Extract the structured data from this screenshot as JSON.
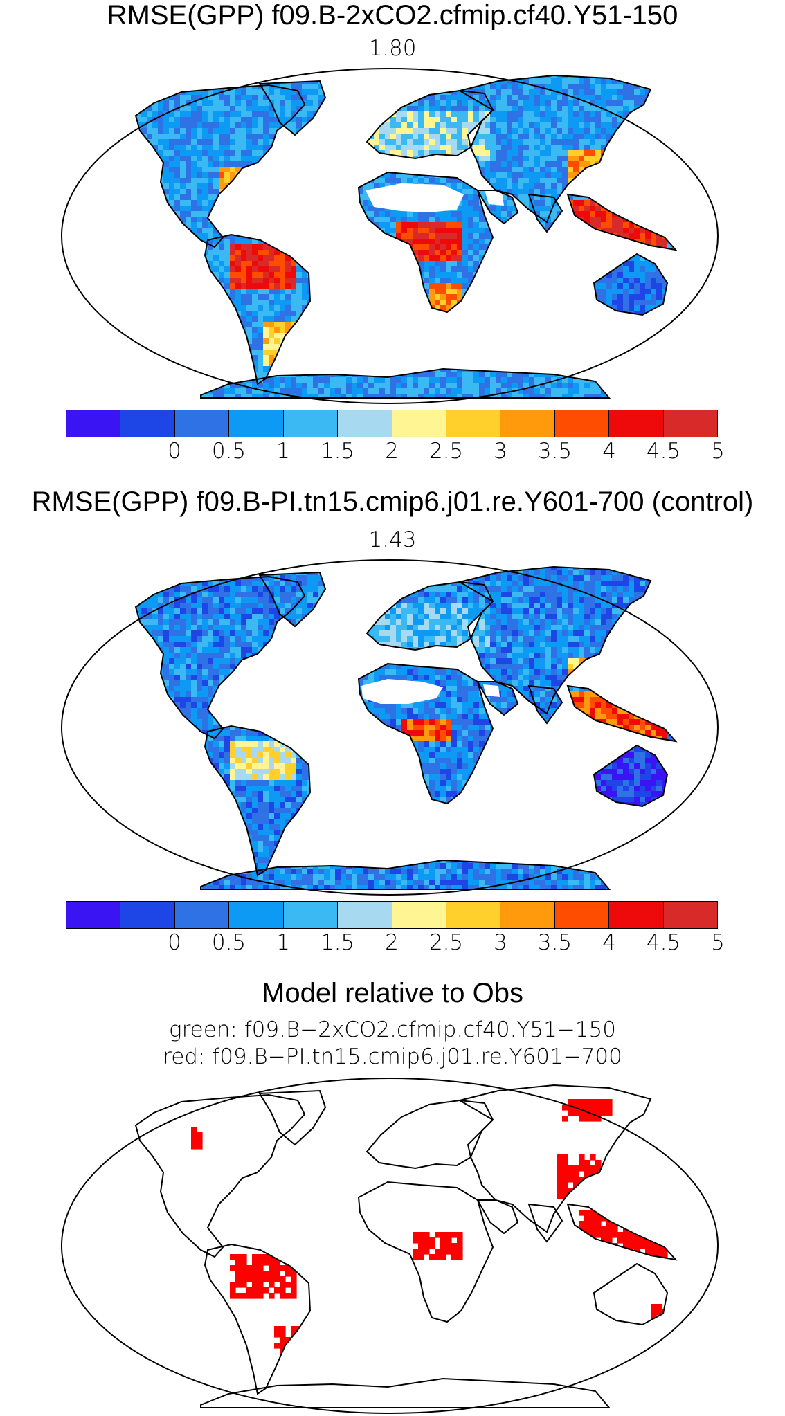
{
  "panel1": {
    "title": "RMSE(GPP) f09.B-2xCO2.cfmip.cf40.Y51-150",
    "value": "1.80"
  },
  "panel2": {
    "title": "RMSE(GPP) f09.B-PI.tn15.cmip6.j01.re.Y601-700 (control)",
    "value": "1.43"
  },
  "panel3": {
    "title": "Model relative to Obs",
    "line_green": "green: f09.B−2xCO2.cfmip.cf40.Y51−150",
    "line_red": "red: f09.B−PI.tn15.cmip6.j01.re.Y601−700"
  },
  "colorbar": {
    "colors": [
      "#3a14f2",
      "#1e45e6",
      "#2f72e6",
      "#0d9af5",
      "#3bb9f2",
      "#a7d9f0",
      "#fff593",
      "#ffd02b",
      "#ff9a0d",
      "#ff4d00",
      "#ee0a0a",
      "#d92a2a"
    ],
    "tick_labels": [
      "0",
      "0.5",
      "1",
      "1.5",
      "2",
      "2.5",
      "3",
      "3.5",
      "4",
      "4.5",
      "5"
    ]
  },
  "colors": {
    "land_outline": "#000000",
    "desert_blank": "#ffffff",
    "model_better_red": "#ff0000",
    "model_better_green": "#00b000"
  }
}
